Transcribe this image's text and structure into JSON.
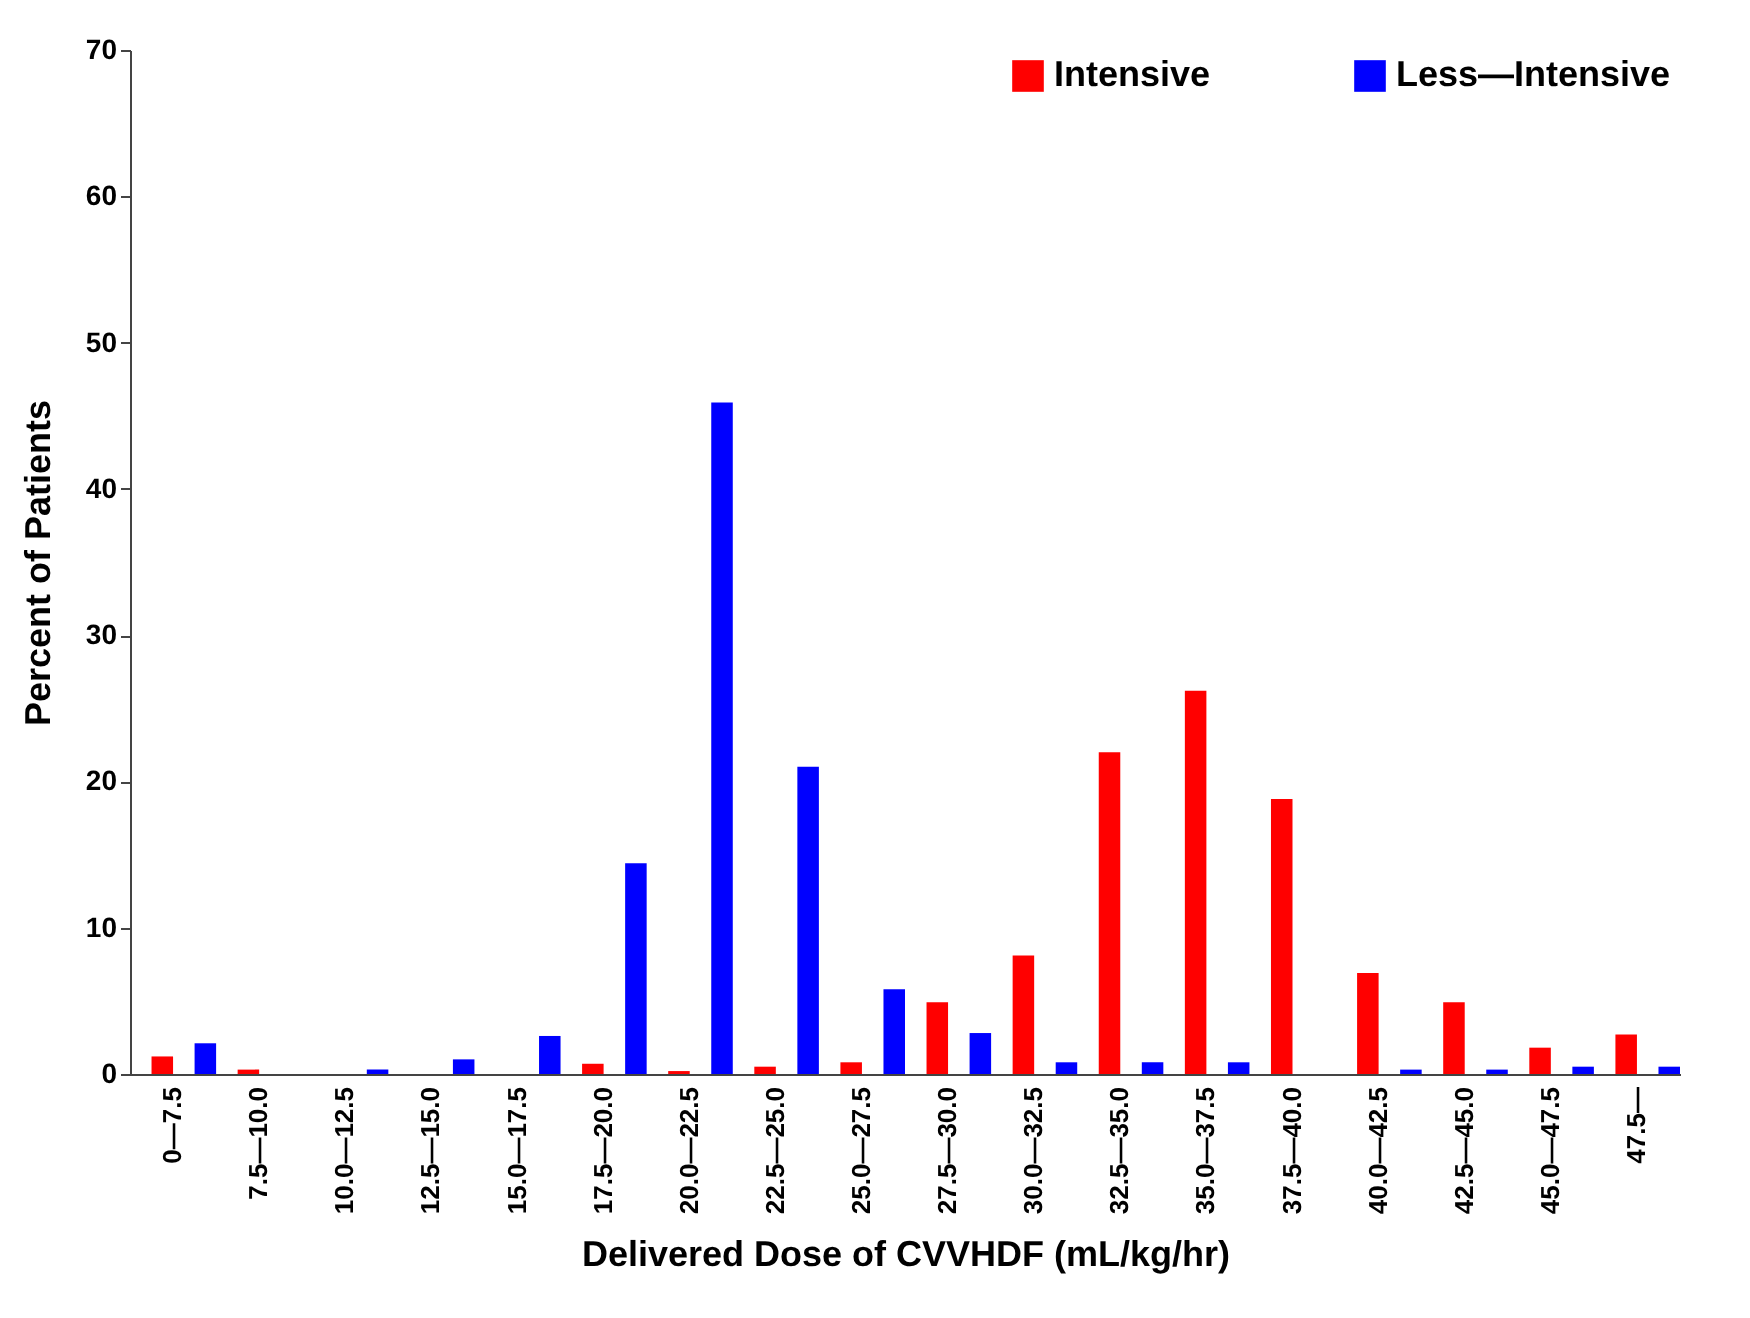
{
  "chart_data": {
    "type": "bar",
    "xlabel": "Delivered Dose of CVVHDF (mL/kg/hr)",
    "ylabel": "Percent of Patients",
    "categories": [
      "0—7.5",
      "7.5—10.0",
      "10.0—12.5",
      "12.5—15.0",
      "15.0—17.5",
      "17.5—20.0",
      "20.0—22.5",
      "22.5—25.0",
      "25.0—27.5",
      "27.5—30.0",
      "30.0—32.5",
      "32.5—35.0",
      "35.0—37.5",
      "37.5—40.0",
      "40.0—42.5",
      "42.5—45.0",
      "45.0—47.5",
      "47.5—"
    ],
    "series": [
      {
        "name": "Intensive",
        "color": "#ff0000",
        "values": [
          1.2,
          0.3,
          0,
          0,
          0,
          0.7,
          0.2,
          0.5,
          0.8,
          4.9,
          8.1,
          22,
          26.2,
          18.8,
          6.9,
          4.9,
          1.8,
          2.7
        ]
      },
      {
        "name": "Less—Intensive",
        "color": "#0000ff",
        "values": [
          2.1,
          0,
          0.3,
          1.0,
          2.6,
          14.4,
          45.9,
          21,
          5.8,
          2.8,
          0.8,
          0.8,
          0.8,
          0,
          0.3,
          0.3,
          0.5,
          0.5
        ]
      }
    ],
    "ylim": [
      0,
      70
    ],
    "yticks": [
      0,
      10,
      20,
      30,
      40,
      50,
      60,
      70
    ],
    "grid": false,
    "legend": "top right"
  }
}
